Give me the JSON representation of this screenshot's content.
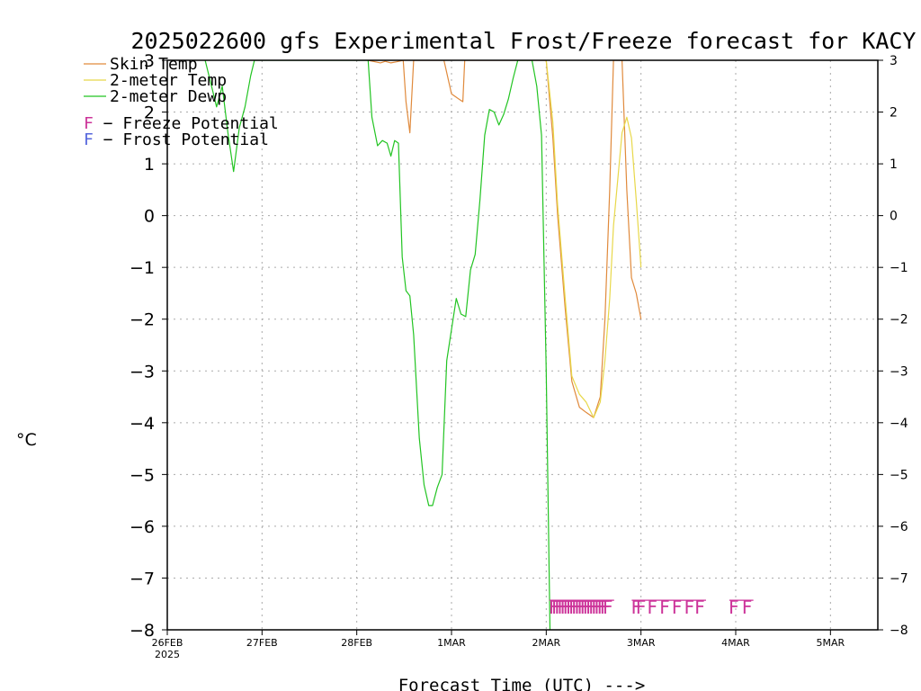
{
  "chart_data": {
    "type": "line",
    "title": "2025022600 gfs Experimental Frost/Freeze forecast for KACY",
    "ylabel": "°C",
    "xlabel": "Forecast Time (UTC) --->",
    "ylim": [
      -8,
      3
    ],
    "xlim": [
      0,
      7.5
    ],
    "yticks": [
      3,
      2,
      1,
      0,
      -1,
      -2,
      -3,
      -4,
      -5,
      -6,
      -7,
      -8
    ],
    "ytick_labels": [
      "3",
      "2",
      "1",
      "0",
      "−1",
      "−2",
      "−3",
      "−4",
      "−5",
      "−6",
      "−7",
      "−8"
    ],
    "xticks": [
      0,
      1,
      2,
      3,
      4,
      5,
      6,
      7
    ],
    "xtick_labels": [
      "26FEB",
      "27FEB",
      "28FEB",
      "1MAR",
      "2MAR",
      "3MAR",
      "4MAR",
      "5MAR"
    ],
    "xtick_year": "2025",
    "grid": true,
    "legend": "top-left",
    "series": [
      {
        "name": "Skin Temp",
        "color": "#e08a3c",
        "x": [
          2.12,
          2.25,
          2.3,
          2.36,
          2.42,
          2.49,
          2.52,
          2.56,
          2.6,
          2.92,
          3.0,
          3.08,
          3.12,
          3.14,
          4.0,
          4.07,
          4.12,
          4.2,
          4.27,
          4.35,
          4.42,
          4.5,
          4.57,
          4.62,
          4.67,
          4.71,
          4.75,
          4.8,
          4.85,
          4.9,
          4.95,
          5.0
        ],
        "y": [
          3,
          2.95,
          2.98,
          2.95,
          2.97,
          3,
          2.2,
          1.6,
          3,
          3,
          2.35,
          2.25,
          2.2,
          3,
          3,
          1.5,
          0,
          -1.8,
          -3.2,
          -3.7,
          -3.8,
          -3.9,
          -3.5,
          -2,
          0.5,
          3,
          3,
          3,
          0.5,
          -1.2,
          -1.5,
          -2.0
        ]
      },
      {
        "name": "2-meter Temp",
        "color": "#e8d84a",
        "x": [
          4.0,
          4.07,
          4.12,
          4.2,
          4.27,
          4.35,
          4.42,
          4.5,
          4.57,
          4.62,
          4.67,
          4.71,
          4.76,
          4.8,
          4.85,
          4.9,
          4.95,
          5.0
        ],
        "y": [
          3,
          1.8,
          0.2,
          -1.6,
          -3.1,
          -3.45,
          -3.6,
          -3.9,
          -3.6,
          -2.8,
          -1.6,
          -0.2,
          0.8,
          1.6,
          1.9,
          1.5,
          0.3,
          -1.0
        ]
      },
      {
        "name": "2-meter Dewp",
        "color": "#22c422",
        "x": [
          0.4,
          0.46,
          0.52,
          0.58,
          0.64,
          0.7,
          0.76,
          0.82,
          0.88,
          0.92,
          0.96,
          1.0,
          1.04,
          1.08,
          2.12,
          2.16,
          2.22,
          2.27,
          2.32,
          2.36,
          2.4,
          2.44,
          2.48,
          2.52,
          2.56,
          2.6,
          2.66,
          2.71,
          2.76,
          2.8,
          2.85,
          2.9,
          2.95,
          3.0,
          3.05,
          3.1,
          3.15,
          3.2,
          3.25,
          3.3,
          3.35,
          3.4,
          3.45,
          3.5,
          3.55,
          3.6,
          3.65,
          3.7,
          3.75,
          3.8,
          3.85,
          3.9,
          3.95,
          4.0,
          4.04
        ],
        "y": [
          3,
          2.55,
          2.1,
          2.5,
          1.6,
          0.85,
          1.7,
          2.1,
          2.7,
          3,
          3,
          3,
          3,
          3,
          3,
          1.9,
          1.35,
          1.45,
          1.4,
          1.15,
          1.45,
          1.4,
          -0.8,
          -1.45,
          -1.55,
          -2.3,
          -4.3,
          -5.2,
          -5.6,
          -5.6,
          -5.25,
          -5.0,
          -2.8,
          -2.2,
          -1.6,
          -1.9,
          -1.95,
          -1.05,
          -0.75,
          0.3,
          1.55,
          2.05,
          2.0,
          1.75,
          1.95,
          2.25,
          2.65,
          3,
          3,
          3,
          3,
          2.5,
          1.55,
          -3.0,
          -8.0
        ]
      }
    ],
    "potential_legend": [
      {
        "symbol": "F",
        "label": " − Freeze Potential",
        "color": "#cc3399"
      },
      {
        "symbol": "F",
        "label": " − Frost Potential",
        "color": "#5566dd"
      }
    ],
    "freeze_marks": {
      "symbol": "F",
      "color": "#cc3399",
      "y": -7.55,
      "x": [
        4.08,
        4.11,
        4.14,
        4.17,
        4.2,
        4.23,
        4.26,
        4.29,
        4.32,
        4.35,
        4.38,
        4.41,
        4.44,
        4.47,
        4.5,
        4.53,
        4.56,
        4.59,
        4.62,
        4.65,
        4.95,
        5.0,
        5.12,
        5.25,
        5.38,
        5.51,
        5.62,
        5.98,
        6.12
      ]
    }
  }
}
